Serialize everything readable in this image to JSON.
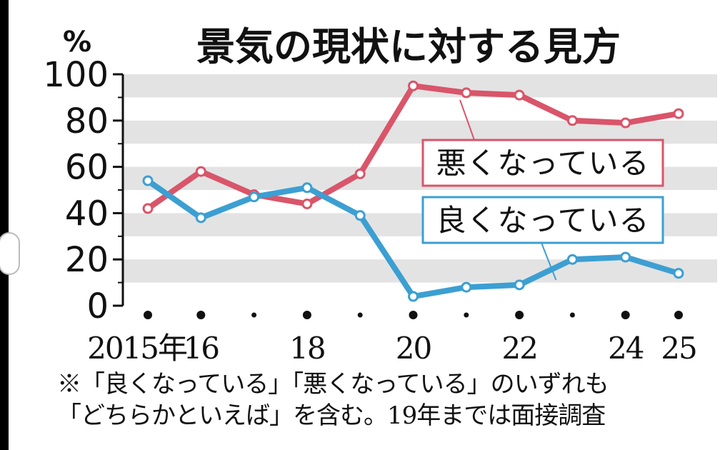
{
  "chart_data": {
    "type": "line",
    "title": "景気の現状に対する見方",
    "ylabel": "%",
    "ylim": [
      0,
      100
    ],
    "yticks": [
      0,
      20,
      40,
      60,
      80,
      100
    ],
    "x": [
      2015,
      2016,
      2017,
      2018,
      2019,
      2020,
      2021,
      2022,
      2023,
      2024,
      2025
    ],
    "xtick_labels": [
      {
        "x": 2015,
        "label": "2015年"
      },
      {
        "x": 2016,
        "label": "16"
      },
      {
        "x": 2018,
        "label": "18"
      },
      {
        "x": 2020,
        "label": "20"
      },
      {
        "x": 2022,
        "label": "22"
      },
      {
        "x": 2024,
        "label": "24"
      },
      {
        "x": 2025,
        "label": "25"
      }
    ],
    "series": [
      {
        "name": "悪くなっている",
        "color": "#d9556a",
        "values": [
          42,
          58,
          48,
          44,
          57,
          95,
          92,
          91,
          80,
          79,
          83
        ]
      },
      {
        "name": "良くなっている",
        "color": "#3c9fd2",
        "values": [
          54,
          38,
          47,
          51,
          39,
          4,
          8,
          9,
          20,
          21,
          14
        ]
      }
    ],
    "grid": "alternating horizontal bands",
    "footnote": [
      "※「良くなっている」「悪くなっている」のいずれも",
      "「どちらかといえば」を含む。19年までは面接調査"
    ]
  }
}
